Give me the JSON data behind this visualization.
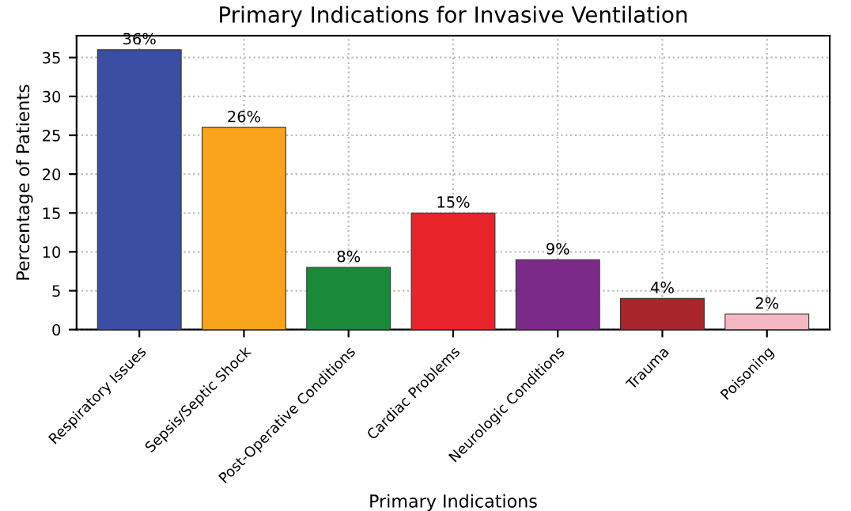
{
  "chart_data": {
    "type": "bar",
    "title": "Primary Indications for Invasive Ventilation",
    "xlabel": "Primary Indications",
    "ylabel": "Percentage of Patients",
    "categories": [
      "Respiratory Issues",
      "Sepsis/Septic Shock",
      "Post-Operative Conditions",
      "Cardiac Problems",
      "Neurologic Conditions",
      "Trauma",
      "Poisoning"
    ],
    "values": [
      36,
      26,
      8,
      15,
      9,
      4,
      2
    ],
    "colors": [
      "#3a4fa3",
      "#f9a51b",
      "#1a8a3a",
      "#e8232a",
      "#7b2a8a",
      "#a8262b",
      "#f4b8c4"
    ],
    "value_labels": [
      "36%",
      "26%",
      "8%",
      "15%",
      "9%",
      "4%",
      "2%"
    ],
    "ylim": [
      0,
      37.8
    ],
    "yticks": [
      0,
      5,
      10,
      15,
      20,
      25,
      30,
      35
    ],
    "grid": true
  }
}
